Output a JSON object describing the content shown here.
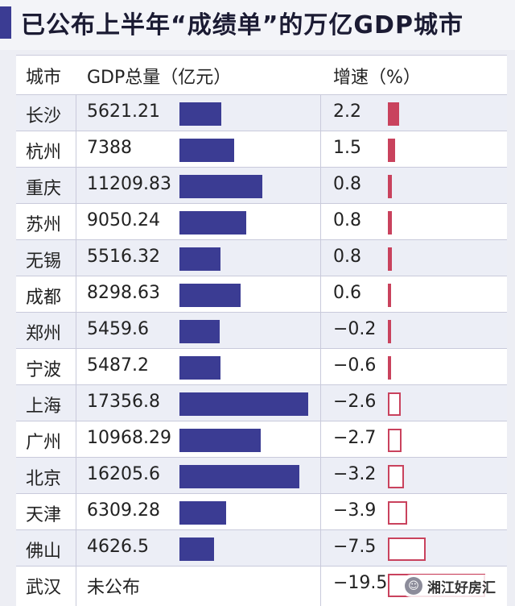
{
  "title": "已公布上半年“成绩单”的万亿GDP城市",
  "header": {
    "city": "城市",
    "gdp": "GDP总量（亿元）",
    "growth": "增速（%）"
  },
  "watermark": "湘江好房汇",
  "colors": {
    "gdp_bar": "#3b3c93",
    "growth_bar": "#c9425d"
  },
  "chart_data": {
    "type": "table",
    "columns": [
      "城市",
      "GDP总量（亿元）",
      "增速（%）"
    ],
    "rows": [
      {
        "city": "长沙",
        "gdp_text": "5621.21",
        "gdp": 5621.21,
        "growth_text": "2.2",
        "growth": 2.2
      },
      {
        "city": "杭州",
        "gdp_text": "7388",
        "gdp": 7388,
        "growth_text": "1.5",
        "growth": 1.5
      },
      {
        "city": "重庆",
        "gdp_text": "11209.83",
        "gdp": 11209.83,
        "growth_text": "0.8",
        "growth": 0.8
      },
      {
        "city": "苏州",
        "gdp_text": "9050.24",
        "gdp": 9050.24,
        "growth_text": "0.8",
        "growth": 0.8
      },
      {
        "city": "无锡",
        "gdp_text": "5516.32",
        "gdp": 5516.32,
        "growth_text": "0.8",
        "growth": 0.8
      },
      {
        "city": "成都",
        "gdp_text": "8298.63",
        "gdp": 8298.63,
        "growth_text": "0.6",
        "growth": 0.6
      },
      {
        "city": "郑州",
        "gdp_text": "5459.6",
        "gdp": 5459.6,
        "growth_text": "−0.2",
        "growth": -0.2
      },
      {
        "city": "宁波",
        "gdp_text": "5487.2",
        "gdp": 5487.2,
        "growth_text": "−0.6",
        "growth": -0.6
      },
      {
        "city": "上海",
        "gdp_text": "17356.8",
        "gdp": 17356.8,
        "growth_text": "−2.6",
        "growth": -2.6
      },
      {
        "city": "广州",
        "gdp_text": "10968.29",
        "gdp": 10968.29,
        "growth_text": "−2.7",
        "growth": -2.7
      },
      {
        "city": "北京",
        "gdp_text": "16205.6",
        "gdp": 16205.6,
        "growth_text": "−3.2",
        "growth": -3.2
      },
      {
        "city": "天津",
        "gdp_text": "6309.28",
        "gdp": 6309.28,
        "growth_text": "−3.9",
        "growth": -3.9
      },
      {
        "city": "佛山",
        "gdp_text": "4626.5",
        "gdp": 4626.5,
        "growth_text": "−7.5",
        "growth": -7.5
      },
      {
        "city": "武汉",
        "gdp_text": "未公布",
        "gdp": null,
        "growth_text": "−19.5",
        "growth": -19.5
      }
    ]
  }
}
